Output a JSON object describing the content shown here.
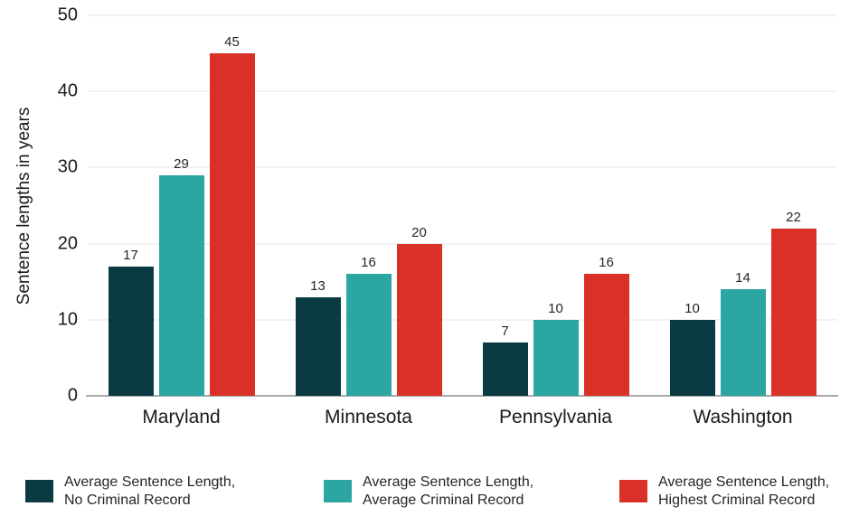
{
  "chart_data": {
    "type": "bar",
    "title": "",
    "xlabel": "",
    "ylabel": "Sentence lengths in years",
    "ylim": [
      0,
      50
    ],
    "yticks": [
      0,
      10,
      20,
      30,
      40,
      50
    ],
    "grid": true,
    "show_value_labels": true,
    "legend_position": "bottom",
    "categories": [
      "Maryland",
      "Minnesota",
      "Pennsylvania",
      "Washington"
    ],
    "series": [
      {
        "name": "Average Sentence Length, No Criminal Record",
        "legend_lines": [
          "Average Sentence Length,",
          "No Criminal Record"
        ],
        "color": "#0a3b43",
        "values": [
          17,
          13,
          7,
          10
        ]
      },
      {
        "name": "Average Sentence Length, Average Criminal Record",
        "legend_lines": [
          "Average Sentence Length,",
          "Average Criminal Record"
        ],
        "color": "#2ca6a2",
        "values": [
          29,
          16,
          10,
          14
        ]
      },
      {
        "name": "Average Sentence Length, Highest Criminal Record",
        "legend_lines": [
          "Average Sentence Length,",
          "Highest Criminal Record"
        ],
        "color": "#d93027",
        "values": [
          45,
          20,
          16,
          22
        ]
      }
    ],
    "colors": {
      "gridline": "#e4e4e4",
      "axis_line": "#a9a9a9",
      "text": "#1a1a1a",
      "value_label": "#262626"
    }
  }
}
